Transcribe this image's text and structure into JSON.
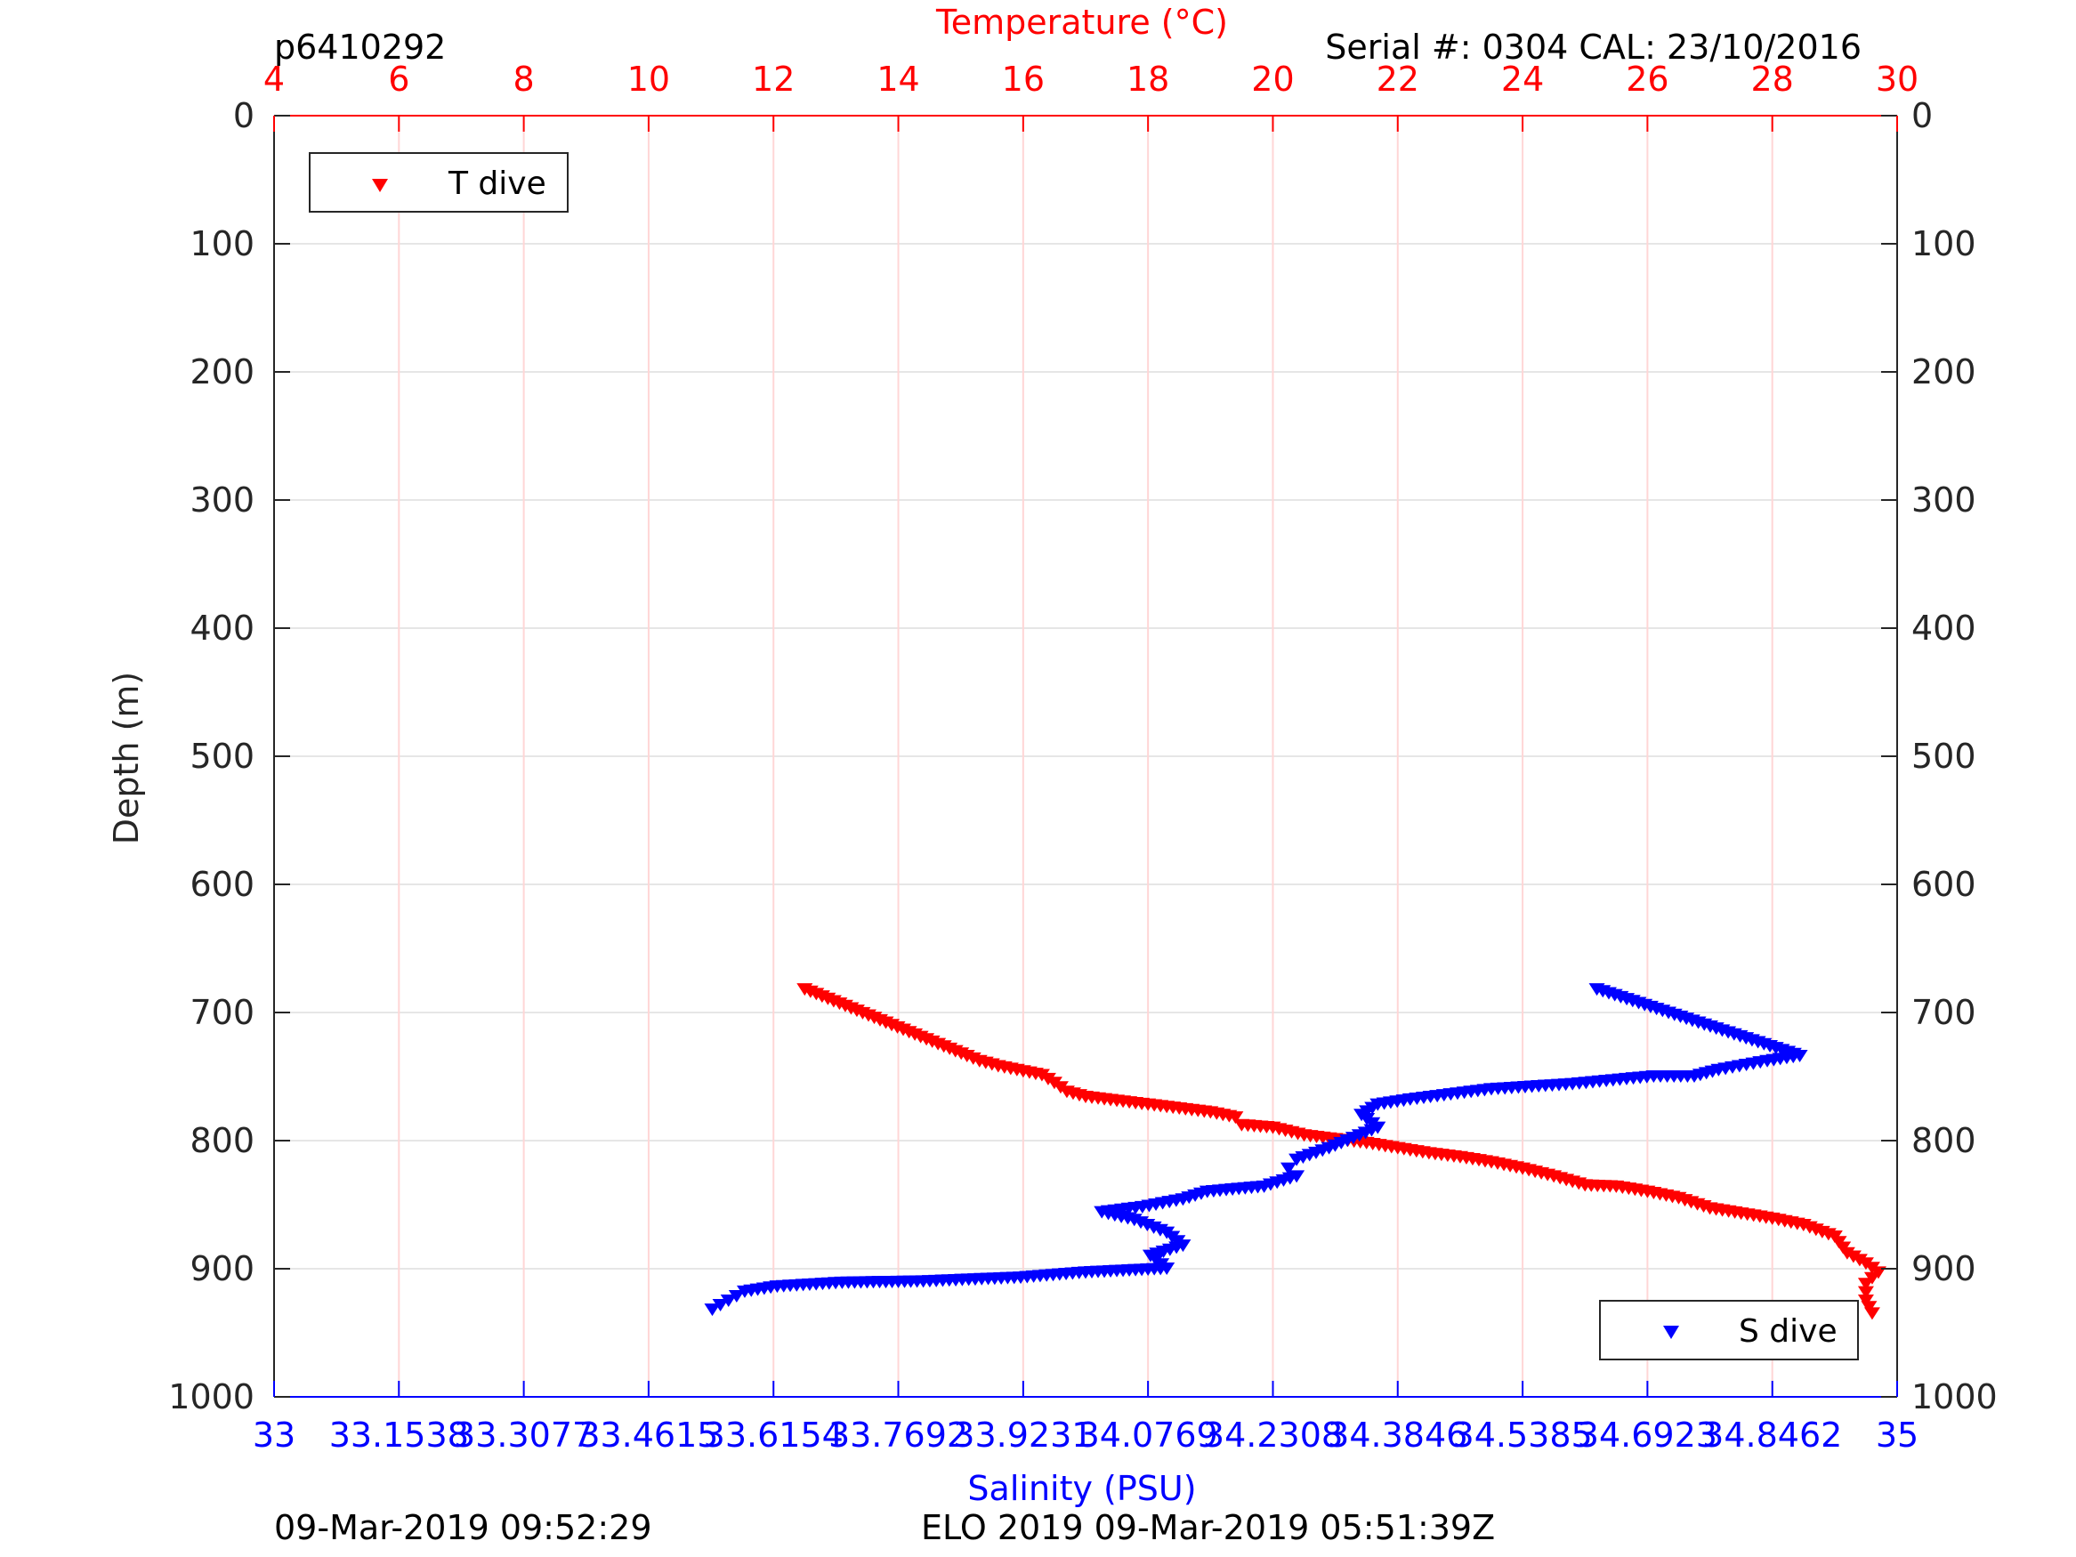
{
  "header": {
    "profile_id": "p6410292",
    "serial_info": "Serial #: 0304  CAL: 23/10/2016"
  },
  "footer": {
    "left": "09-Mar-2019 09:52:29",
    "center": "ELO 2019 09-Mar-2019 05:51:39Z"
  },
  "colors": {
    "temperature": "#ff0000",
    "salinity": "#0000ff",
    "axis": "#262626",
    "grid": "#e6e6e6"
  },
  "chart_data": {
    "type": "scatter",
    "y_axis": {
      "label": "Depth (m)",
      "range": [
        0,
        1000
      ],
      "reversed": true,
      "ticks": [
        0,
        100,
        200,
        300,
        400,
        500,
        600,
        700,
        800,
        900,
        1000
      ]
    },
    "x_axis_top": {
      "label": "Temperature (°C)",
      "range": [
        4,
        30
      ],
      "ticks": [
        4,
        6,
        8,
        10,
        12,
        14,
        16,
        18,
        20,
        22,
        24,
        26,
        28,
        30
      ]
    },
    "x_axis_bottom": {
      "label": "Salinity (PSU)",
      "range": [
        33,
        35
      ],
      "ticks": [
        33,
        33.1538,
        33.3077,
        33.4615,
        33.6154,
        33.7692,
        33.9231,
        34.0769,
        34.2308,
        34.3846,
        34.5385,
        34.6923,
        34.8462,
        35
      ],
      "tick_labels": [
        "33",
        "33.1538",
        "33.3077",
        "33.4615",
        "33.6154",
        "33.7692",
        "33.9231",
        "34.0769",
        "34.2308",
        "34.3846",
        "34.5385",
        "34.6923",
        "34.8462",
        "35"
      ]
    },
    "grid": true,
    "series": [
      {
        "name": "T dive",
        "axis": "temperature",
        "color": "#ff0000",
        "legend_position": "top-left",
        "points": [
          [
            12.5,
            682
          ],
          [
            15.1,
            734
          ],
          [
            15.3,
            738
          ],
          [
            15.6,
            742
          ],
          [
            16.0,
            746
          ],
          [
            16.3,
            749
          ],
          [
            16.5,
            755
          ],
          [
            16.7,
            762
          ],
          [
            17.0,
            766
          ],
          [
            17.5,
            769
          ],
          [
            18.0,
            772
          ],
          [
            18.5,
            775
          ],
          [
            19.0,
            778
          ],
          [
            19.4,
            782
          ],
          [
            19.5,
            788
          ],
          [
            20.0,
            790
          ],
          [
            20.5,
            796
          ],
          [
            21.0,
            799
          ],
          [
            21.5,
            802
          ],
          [
            22.0,
            806
          ],
          [
            22.5,
            810
          ],
          [
            23.0,
            813
          ],
          [
            23.5,
            817
          ],
          [
            24.0,
            822
          ],
          [
            24.5,
            828
          ],
          [
            25.0,
            835
          ],
          [
            25.5,
            836
          ],
          [
            26.0,
            840
          ],
          [
            26.5,
            845
          ],
          [
            27.0,
            853
          ],
          [
            27.5,
            857
          ],
          [
            28.0,
            861
          ],
          [
            28.5,
            866
          ],
          [
            29.0,
            875
          ],
          [
            29.2,
            888
          ],
          [
            29.5,
            896
          ],
          [
            29.7,
            903
          ],
          [
            29.5,
            912
          ],
          [
            29.5,
            925
          ],
          [
            29.6,
            935
          ]
        ]
      },
      {
        "name": "S dive",
        "axis": "salinity",
        "color": "#0000ff",
        "legend_position": "bottom-right",
        "points": [
          [
            34.63,
            682
          ],
          [
            34.88,
            734
          ],
          [
            34.84,
            738
          ],
          [
            34.78,
            745
          ],
          [
            34.75,
            750
          ],
          [
            34.7,
            750
          ],
          [
            34.65,
            753
          ],
          [
            34.6,
            756
          ],
          [
            34.55,
            758
          ],
          [
            34.5,
            760
          ],
          [
            34.45,
            764
          ],
          [
            34.4,
            768
          ],
          [
            34.36,
            772
          ],
          [
            34.34,
            780
          ],
          [
            34.36,
            790
          ],
          [
            34.33,
            798
          ],
          [
            34.3,
            806
          ],
          [
            34.26,
            815
          ],
          [
            34.25,
            822
          ],
          [
            34.26,
            828
          ],
          [
            34.22,
            836
          ],
          [
            34.15,
            840
          ],
          [
            34.12,
            846
          ],
          [
            34.07,
            852
          ],
          [
            34.02,
            856
          ],
          [
            34.06,
            862
          ],
          [
            34.1,
            872
          ],
          [
            34.12,
            882
          ],
          [
            34.08,
            890
          ],
          [
            34.1,
            900
          ],
          [
            34.0,
            903
          ],
          [
            33.92,
            907
          ],
          [
            33.8,
            910
          ],
          [
            33.7,
            911
          ],
          [
            33.62,
            914
          ],
          [
            33.58,
            918
          ],
          [
            33.56,
            925
          ],
          [
            33.54,
            932
          ]
        ]
      }
    ]
  }
}
